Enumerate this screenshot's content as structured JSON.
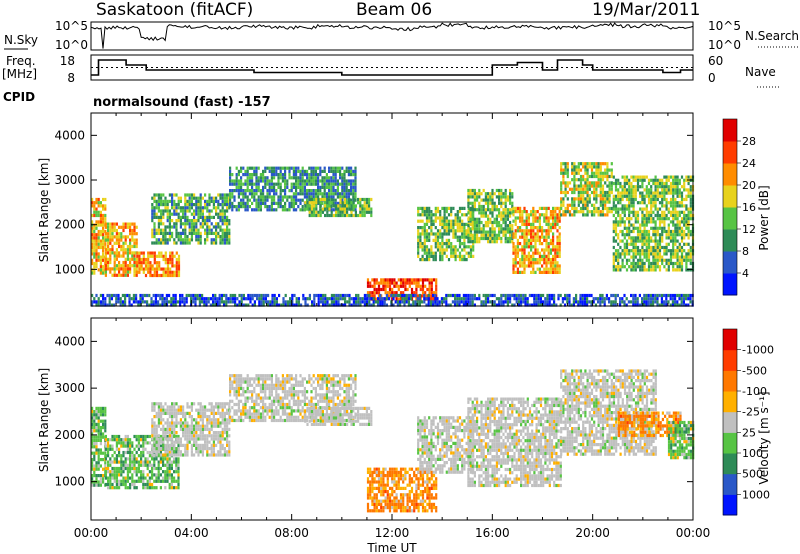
{
  "header": {
    "station_title": "Saskatoon (fitACF)",
    "beam_title": "Beam 06",
    "date_title": "19/Mar/2011"
  },
  "panel_labels": {
    "nsky": "N.Sky",
    "nsearch": "N.Search",
    "freq_line1": "Freq.",
    "freq_line2": "[MHz]",
    "nave": "Nave",
    "cpid": "CPID",
    "cpid_value": "normalsound (fast) -157"
  },
  "colors": {
    "curve": "#000000",
    "no_data": "#ffffff",
    "ground_scatter": "#c0c0c0"
  },
  "chart_data": [
    {
      "type": "line",
      "id": "noise",
      "left_ticks": [
        "10^5",
        "10^0"
      ],
      "right_ticks": [
        "10^5",
        "10^0"
      ],
      "x_range_hours": [
        0,
        24
      ],
      "nsky_level_trace": [
        0.8,
        0.8,
        0.4,
        0.85,
        0.82,
        0.78,
        0.85,
        0.8,
        0.8,
        0.85,
        0.82,
        0.8,
        0.75,
        0.82,
        0.9,
        0.8,
        0.83,
        0.85,
        0.8,
        0.82,
        0.9,
        0.85,
        0.88,
        0.8,
        0.9
      ]
    },
    {
      "type": "line",
      "id": "freq_nave",
      "left_ticks": [
        "18",
        "8"
      ],
      "right_ticks": [
        "60",
        "0"
      ],
      "freq_ylim_mhz": [
        8,
        18
      ],
      "nave_ylim": [
        0,
        60
      ],
      "freq_steps": [
        {
          "t": 0.0,
          "f": 10
        },
        {
          "t": 0.3,
          "f": 16
        },
        {
          "t": 1.4,
          "f": 14
        },
        {
          "t": 2.2,
          "f": 12
        },
        {
          "t": 6.5,
          "f": 11
        },
        {
          "t": 10.0,
          "f": 10
        },
        {
          "t": 12.0,
          "f": 10
        },
        {
          "t": 14.0,
          "f": 10
        },
        {
          "t": 15.0,
          "f": 10
        },
        {
          "t": 16.0,
          "f": 14
        },
        {
          "t": 17.0,
          "f": 15
        },
        {
          "t": 18.0,
          "f": 12
        },
        {
          "t": 18.6,
          "f": 16
        },
        {
          "t": 19.6,
          "f": 14
        },
        {
          "t": 20.0,
          "f": 12
        },
        {
          "t": 22.8,
          "f": 11
        },
        {
          "t": 23.5,
          "f": 12
        },
        {
          "t": 24.0,
          "f": 12
        }
      ],
      "nave_level": 30
    },
    {
      "type": "heatmap",
      "id": "power",
      "ylabel": "Slant Range [km]",
      "xlabel": "",
      "ylim": [
        180,
        4500
      ],
      "yticks": [
        1000,
        2000,
        3000,
        4000
      ],
      "x_ticks": [
        "00:00",
        "04:00",
        "08:00",
        "12:00",
        "16:00",
        "20:00",
        "00:00"
      ],
      "x_tick_hours": [
        0,
        4,
        8,
        12,
        16,
        20,
        24
      ],
      "colorbar": {
        "label": "Power [dB]",
        "ticks": [
          "4",
          "8",
          "12",
          "16",
          "20",
          "24",
          "28"
        ],
        "colors": [
          "#0014ff",
          "#2a58c8",
          "#2e8b57",
          "#57c444",
          "#e8d21d",
          "#ff8c00",
          "#ff3c00",
          "#e00000"
        ]
      },
      "regions": [
        {
          "t0": 0.0,
          "t1": 0.55,
          "r0": 950,
          "r1": 2600,
          "v": 20
        },
        {
          "t0": 0.55,
          "t1": 1.8,
          "r0": 900,
          "r1": 2050,
          "v": 20
        },
        {
          "t0": 1.8,
          "t1": 3.5,
          "r0": 850,
          "r1": 1400,
          "v": 22
        },
        {
          "t0": 2.4,
          "t1": 5.5,
          "r0": 1600,
          "r1": 2700,
          "v": 12
        },
        {
          "t0": 5.5,
          "t1": 10.5,
          "r0": 2300,
          "r1": 3300,
          "v": 10
        },
        {
          "t0": 8.5,
          "t1": 11.2,
          "r0": 2200,
          "r1": 2600,
          "v": 14
        },
        {
          "t0": 11.0,
          "t1": 13.8,
          "r0": 350,
          "r1": 800,
          "v": 26
        },
        {
          "t0": 13.0,
          "t1": 15.2,
          "r0": 1200,
          "r1": 2400,
          "v": 14
        },
        {
          "t0": 15.0,
          "t1": 16.8,
          "r0": 1600,
          "r1": 2800,
          "v": 14
        },
        {
          "t0": 16.8,
          "t1": 18.7,
          "r0": 900,
          "r1": 2400,
          "v": 20
        },
        {
          "t0": 18.7,
          "t1": 20.8,
          "r0": 2200,
          "r1": 3400,
          "v": 16
        },
        {
          "t0": 20.8,
          "t1": 24.0,
          "r0": 1000,
          "r1": 3100,
          "v": 14
        },
        {
          "t0": 0.0,
          "t1": 24.0,
          "r0": 180,
          "r1": 450,
          "v": 6
        }
      ]
    },
    {
      "type": "heatmap",
      "id": "velocity",
      "ylabel": "Slant Range [km]",
      "xlabel": "Time UT",
      "ylim": [
        180,
        4500
      ],
      "yticks": [
        1000,
        2000,
        3000,
        4000
      ],
      "x_ticks": [
        "00:00",
        "04:00",
        "08:00",
        "12:00",
        "16:00",
        "20:00",
        "00:00"
      ],
      "x_tick_hours": [
        0,
        4,
        8,
        12,
        16,
        20,
        24
      ],
      "colorbar": {
        "label": "Velocity [m s⁻¹]",
        "ticks": [
          "1000",
          "500",
          "100",
          "25",
          "-25",
          "-100",
          "-500",
          "-1000"
        ],
        "colors": [
          "#0014ff",
          "#2a58c8",
          "#2e8b57",
          "#57c444",
          "#c0c0c0",
          "#ffb000",
          "#ff7800",
          "#ff3c00",
          "#e00000"
        ]
      },
      "regions": [
        {
          "t0": 0.0,
          "t1": 0.55,
          "r0": 950,
          "r1": 2600,
          "v": 100
        },
        {
          "t0": 0.55,
          "t1": 3.5,
          "r0": 850,
          "r1": 2000,
          "v": 200
        },
        {
          "t0": 2.4,
          "t1": 5.5,
          "r0": 1600,
          "r1": 2700,
          "v": 0
        },
        {
          "t0": 5.5,
          "t1": 10.5,
          "r0": 2300,
          "r1": 3300,
          "v": 0
        },
        {
          "t0": 8.5,
          "t1": 11.2,
          "r0": 2200,
          "r1": 2600,
          "v": 0
        },
        {
          "t0": 11.0,
          "t1": 13.8,
          "r0": 350,
          "r1": 1300,
          "v": -200
        },
        {
          "t0": 13.0,
          "t1": 15.2,
          "r0": 1200,
          "r1": 2400,
          "v": 0
        },
        {
          "t0": 15.0,
          "t1": 18.7,
          "r0": 900,
          "r1": 2800,
          "v": 0
        },
        {
          "t0": 18.7,
          "t1": 22.5,
          "r0": 1600,
          "r1": 3400,
          "v": 0
        },
        {
          "t0": 21.0,
          "t1": 23.5,
          "r0": 2000,
          "r1": 2500,
          "v": -300
        },
        {
          "t0": 23.0,
          "t1": 24.0,
          "r0": 1500,
          "r1": 2300,
          "v": 100
        }
      ]
    }
  ]
}
